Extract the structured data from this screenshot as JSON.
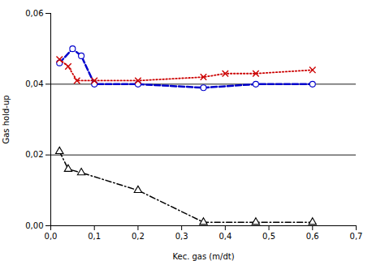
{
  "chart_data": {
    "type": "line",
    "xlabel": "Kec. gas (m/dt)",
    "ylabel": "Gas hold-up",
    "xlim": [
      0.0,
      0.7
    ],
    "ylim": [
      0.0,
      0.06
    ],
    "xticks": [
      {
        "value": 0.0,
        "label": "0,0"
      },
      {
        "value": 0.1,
        "label": "0,1"
      },
      {
        "value": 0.2,
        "label": "0,2"
      },
      {
        "value": 0.3,
        "label": "0,3"
      },
      {
        "value": 0.4,
        "label": "0,4"
      },
      {
        "value": 0.5,
        "label": "0,5"
      },
      {
        "value": 0.6,
        "label": "0,6"
      },
      {
        "value": 0.7,
        "label": "0,7"
      }
    ],
    "yticks": [
      {
        "value": 0.0,
        "label": "0,00"
      },
      {
        "value": 0.02,
        "label": "0,02"
      },
      {
        "value": 0.04,
        "label": "0,04"
      },
      {
        "value": 0.06,
        "label": "0,06"
      }
    ],
    "hlines": [
      0.02,
      0.04
    ],
    "grid": false,
    "series": [
      {
        "x": [
          0.02,
          0.05,
          0.07,
          0.1,
          0.2,
          0.35,
          0.47,
          0.6
        ],
        "values": [
          0.046,
          0.05,
          0.048,
          0.04,
          0.04,
          0.039,
          0.04,
          0.04
        ],
        "color": "#0000cc",
        "line_style": "dashed",
        "marker": "circle"
      },
      {
        "x": [
          0.02,
          0.04,
          0.06,
          0.1,
          0.2,
          0.35,
          0.4,
          0.47,
          0.6
        ],
        "values": [
          0.047,
          0.045,
          0.041,
          0.041,
          0.041,
          0.042,
          0.043,
          0.043,
          0.044
        ],
        "color": "#cc0000",
        "line_style": "dotted",
        "marker": "x"
      },
      {
        "x": [
          0.02,
          0.04,
          0.07,
          0.2,
          0.35,
          0.47,
          0.6
        ],
        "values": [
          0.021,
          0.016,
          0.015,
          0.01,
          0.001,
          0.001,
          0.001
        ],
        "color": "#000000",
        "line_style": "dashdot",
        "marker": "triangle"
      }
    ]
  }
}
